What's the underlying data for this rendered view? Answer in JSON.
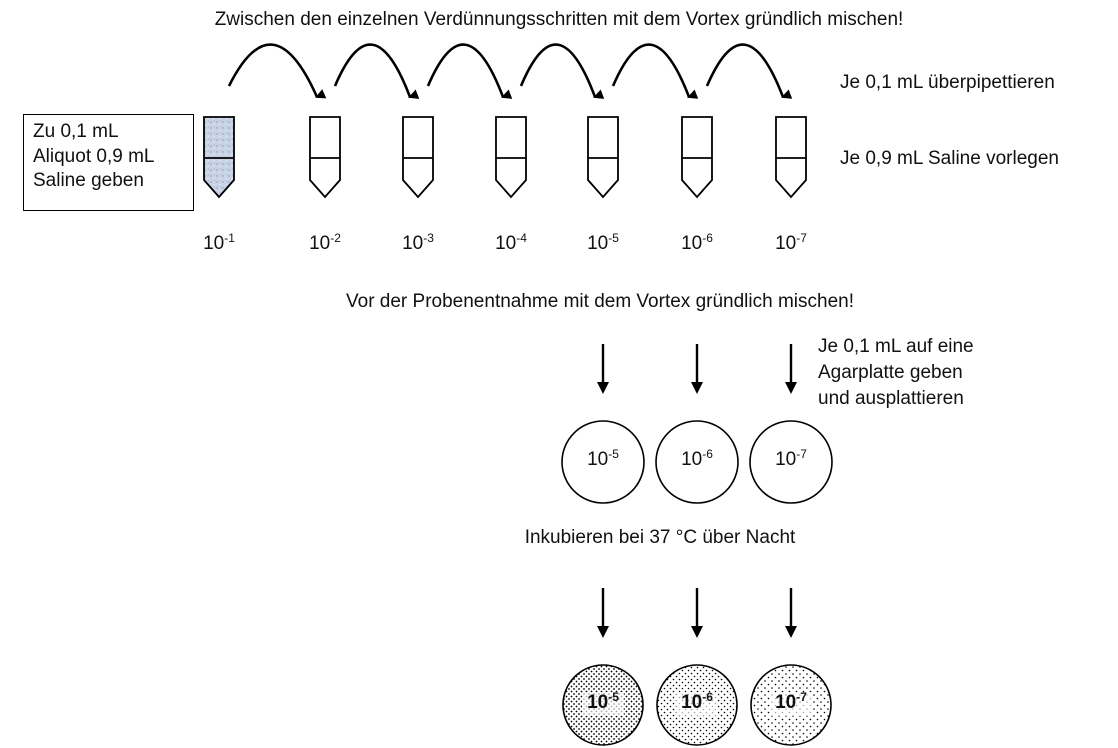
{
  "headings": {
    "mix_between_steps": "Zwischen den einzelnen Verdünnungsschritten mit dem Vortex gründlich mischen!",
    "mix_before_sampling": "Vor der Probenentnahme mit dem Vortex gründlich mischen!",
    "incubate": "Inkubieren bei 37 °C über Nacht"
  },
  "side_notes": {
    "transfer": "Je 0,1 mL überpipettieren",
    "saline": "Je 0,9 mL Saline vorlegen"
  },
  "aliquot_box": {
    "lines": [
      "Zu 0,1 mL",
      "Aliquot 0,9 mL",
      "Saline geben"
    ]
  },
  "dilution_base": "10",
  "tubes": [
    {
      "exponent": "-1",
      "filled": true
    },
    {
      "exponent": "-2",
      "filled": false
    },
    {
      "exponent": "-3",
      "filled": false
    },
    {
      "exponent": "-4",
      "filled": false
    },
    {
      "exponent": "-5",
      "filled": false
    },
    {
      "exponent": "-6",
      "filled": false
    },
    {
      "exponent": "-7",
      "filled": false
    }
  ],
  "plating_note": {
    "lines": [
      "Je 0,1 mL auf eine",
      "Agarplatte geben",
      "und ausplattieren"
    ]
  },
  "plates": [
    {
      "exponent": "-5"
    },
    {
      "exponent": "-6"
    },
    {
      "exponent": "-7"
    }
  ],
  "colors": {
    "filled_tube": "#c9d3e6",
    "stroke": "#000000"
  }
}
